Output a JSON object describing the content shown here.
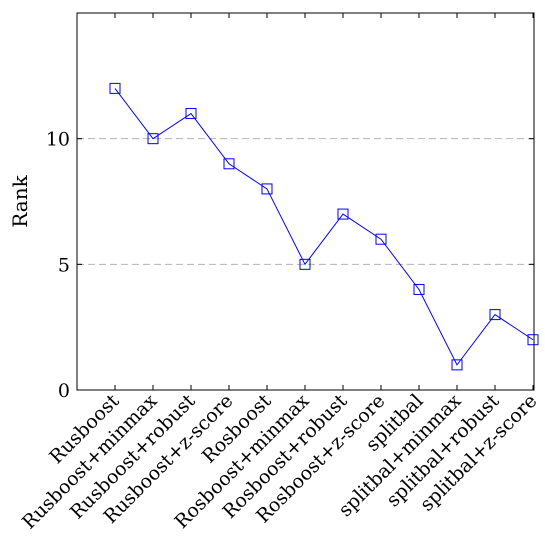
{
  "chart_data": {
    "type": "line",
    "ylabel": "Rank",
    "xlabel": "",
    "title": "",
    "ylim": [
      0,
      15
    ],
    "yticks": [
      0,
      5,
      10
    ],
    "grid": "horizontal-dashed",
    "categories": [
      "Rusboost",
      "Rusboost+minmax",
      "Rusboost+robust",
      "Rusboost+z-score",
      "Rosboost",
      "Rosboost+minmax",
      "Rosboost+robust",
      "Rosboost+z-score",
      "splitbal",
      "splitbal+minmax",
      "splitbal+robust",
      "splitbal+z-score"
    ],
    "series": [
      {
        "values": [
          12,
          10,
          11,
          9,
          8,
          5,
          7,
          6,
          4,
          1,
          3,
          2
        ],
        "color": "#0000ff",
        "marker": "square"
      }
    ]
  }
}
